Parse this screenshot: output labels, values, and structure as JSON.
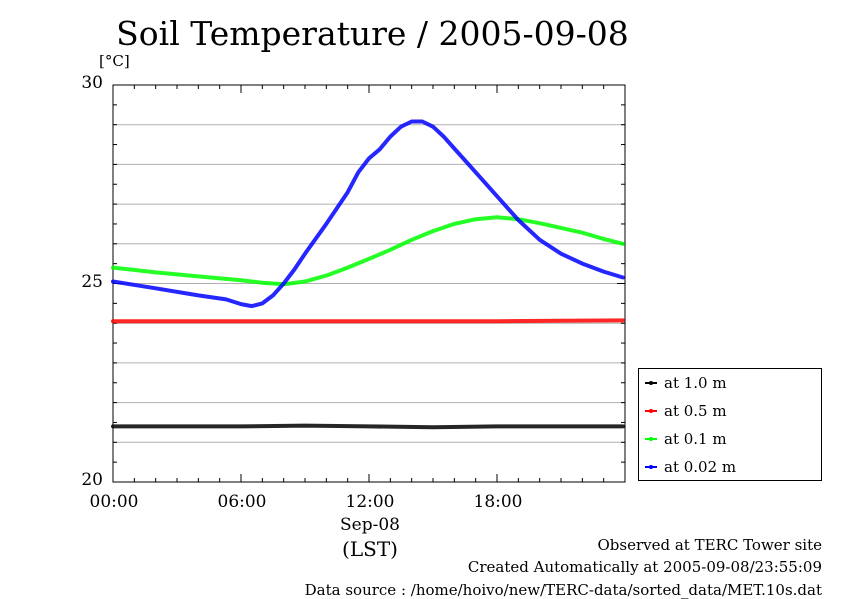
{
  "chart_data": {
    "type": "line",
    "title": "Soil Temperature / 2005-09-08",
    "ylabel": "[°C]",
    "ylim": [
      20,
      30
    ],
    "yticks": [
      20,
      25,
      30
    ],
    "xlim": [
      0,
      24
    ],
    "xticks": [
      {
        "label": "00:00",
        "hour": 0
      },
      {
        "label": "06:00",
        "hour": 6
      },
      {
        "label": "12:00",
        "hour": 12
      },
      {
        "label": "18:00",
        "hour": 18
      }
    ],
    "xlabel_date": "Sep-08",
    "xlabel_unit": "(LST)",
    "grid": true,
    "legend_position": "right, lower",
    "series": [
      {
        "name": "at 1.0 m",
        "color": "#000000",
        "x": [
          0,
          3,
          6,
          9,
          12,
          15,
          18,
          21,
          23.9
        ],
        "y": [
          21.4,
          21.4,
          21.4,
          21.42,
          21.4,
          21.38,
          21.4,
          21.4,
          21.4
        ]
      },
      {
        "name": "at 0.5 m",
        "color": "#ff0000",
        "x": [
          0,
          3,
          6,
          9,
          12,
          15,
          18,
          21,
          23.9
        ],
        "y": [
          24.05,
          24.05,
          24.05,
          24.05,
          24.05,
          24.05,
          24.05,
          24.06,
          24.07
        ]
      },
      {
        "name": "at 0.1 m",
        "color": "#00ff00",
        "x": [
          0,
          2,
          4,
          6,
          7,
          8,
          9,
          10,
          11,
          12,
          13,
          14,
          15,
          16,
          17,
          18,
          19,
          20,
          21,
          22,
          23,
          23.9
        ],
        "y": [
          25.4,
          25.28,
          25.18,
          25.08,
          25.02,
          24.98,
          25.05,
          25.2,
          25.4,
          25.62,
          25.85,
          26.1,
          26.32,
          26.5,
          26.62,
          26.67,
          26.62,
          26.52,
          26.4,
          26.28,
          26.12,
          26.0
        ]
      },
      {
        "name": "at 0.02 m",
        "color": "#0000ff",
        "x": [
          0,
          2,
          4,
          5.3,
          6,
          6.5,
          7,
          7.5,
          8,
          8.5,
          9,
          10,
          11,
          11.5,
          12,
          12.5,
          13,
          13.5,
          14,
          14.5,
          15,
          15.5,
          16,
          17,
          18,
          19,
          20,
          21,
          22,
          23,
          23.9
        ],
        "y": [
          25.05,
          24.88,
          24.7,
          24.6,
          24.48,
          24.43,
          24.5,
          24.7,
          25.0,
          25.35,
          25.75,
          26.5,
          27.3,
          27.8,
          28.15,
          28.38,
          28.7,
          28.95,
          29.08,
          29.08,
          28.95,
          28.7,
          28.4,
          27.8,
          27.2,
          26.6,
          26.1,
          25.75,
          25.5,
          25.3,
          25.15
        ]
      }
    ]
  },
  "footer": {
    "line1": "Observed at TERC Tower site",
    "line2": "Created Automatically at 2005-09-08/23:55:09",
    "line3": "Data source : /home/hoivo/new/TERC-data/sorted_data/MET.10s.dat"
  }
}
